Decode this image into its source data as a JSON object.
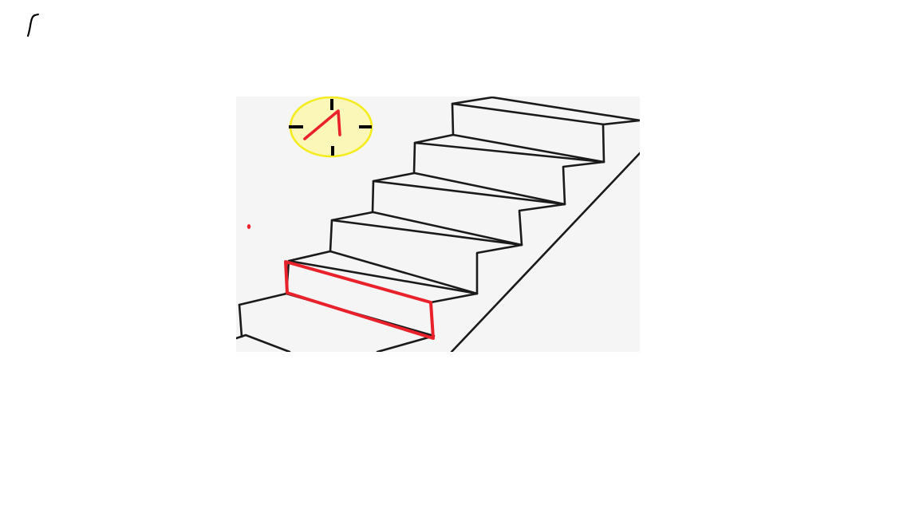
{
  "canvas": {
    "background_color": "#ffffff"
  },
  "image": {
    "subject": "staircase-line-drawing",
    "background_color": "#f5f5f5",
    "line_color": "#1a1a1a",
    "step_count": 6
  },
  "annotations": {
    "ink_color": "#e8212b",
    "highlighted_step_index": 2,
    "clock": {
      "rim_color": "#f5ec1e",
      "rim_fill": "#fbf7b8",
      "tick_color": "#000000",
      "hands_color": "#e8212b"
    },
    "corner_mark_color": "#000000"
  }
}
